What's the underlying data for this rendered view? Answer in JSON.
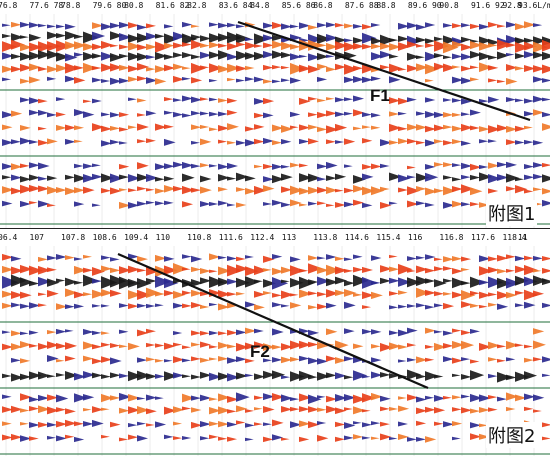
{
  "panels": [
    {
      "ticks": [
        "76.8",
        "77.6 78",
        "78.8",
        "79.6 80",
        "80.8",
        "81.6 82",
        "82.8",
        "83.6 84",
        "84.8",
        "85.6 86",
        "86.8",
        "87.6 88",
        "88.8",
        "89.6 90",
        "90.8",
        "91.6 92",
        "92.8",
        "93.6L/m"
      ],
      "fault_label": "F1",
      "figure_label": "附图1"
    },
    {
      "ticks": [
        "06.4",
        "107",
        "107.8",
        "108.6",
        "109.4",
        "110",
        "110.8",
        "111.6",
        "112.4",
        "113",
        "113.8",
        "114.6",
        "115.4",
        "116",
        "116.8",
        "117.6",
        "118.4",
        "11"
      ],
      "fault_label": "F2",
      "figure_label": "附图2"
    }
  ],
  "colors": {
    "trough": "#1a1a1a",
    "blue": "#2b2a8f",
    "red": "#e8401a",
    "orange": "#f07a2a",
    "horizon_line": "#1f6e3a",
    "fault_line": "#111111"
  }
}
